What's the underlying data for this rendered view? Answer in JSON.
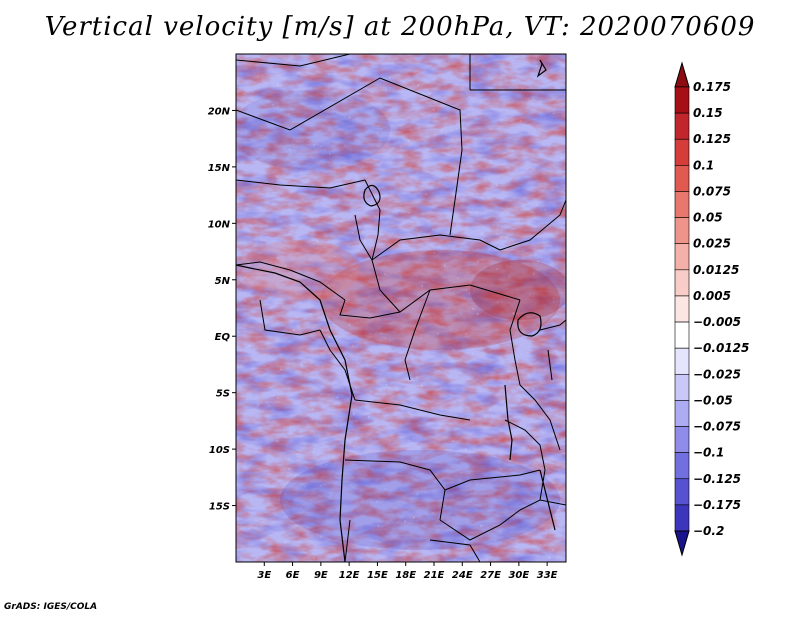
{
  "title": "Vertical velocity [m/s] at 200hPa, VT: 2020070609",
  "credit": "GrADS: IGES/COLA",
  "map": {
    "lon_range": [
      0,
      35
    ],
    "lat_range": [
      -20,
      25
    ],
    "lat_labels": [
      {
        "lat": 20,
        "text": "20N"
      },
      {
        "lat": 15,
        "text": "15N"
      },
      {
        "lat": 10,
        "text": "10N"
      },
      {
        "lat": 5,
        "text": "5N"
      },
      {
        "lat": 0,
        "text": "EQ"
      },
      {
        "lat": -5,
        "text": "5S"
      },
      {
        "lat": -10,
        "text": "10S"
      },
      {
        "lat": -15,
        "text": "15S"
      }
    ],
    "lon_labels": [
      {
        "lon": 3,
        "text": "3E"
      },
      {
        "lon": 6,
        "text": "6E"
      },
      {
        "lon": 9,
        "text": "9E"
      },
      {
        "lon": 12,
        "text": "12E"
      },
      {
        "lon": 15,
        "text": "15E"
      },
      {
        "lon": 18,
        "text": "18E"
      },
      {
        "lon": 21,
        "text": "21E"
      },
      {
        "lon": 24,
        "text": "24E"
      },
      {
        "lon": 27,
        "text": "27E"
      },
      {
        "lon": 30,
        "text": "30E"
      },
      {
        "lon": 33,
        "text": "33E"
      }
    ]
  },
  "colorbar": {
    "levels": [
      {
        "label": "0.175",
        "color": "#a50f15"
      },
      {
        "label": "0.15",
        "color": "#c0262b"
      },
      {
        "label": "0.125",
        "color": "#d43d3a"
      },
      {
        "label": "0.1",
        "color": "#e05a52"
      },
      {
        "label": "0.075",
        "color": "#e8776e"
      },
      {
        "label": "0.05",
        "color": "#ef948b"
      },
      {
        "label": "0.025",
        "color": "#f4b1aa"
      },
      {
        "label": "0.0125",
        "color": "#f8cdc8"
      },
      {
        "label": "0.005",
        "color": "#fce6e3"
      },
      {
        "label": "−0.005",
        "color": "#ffffff"
      },
      {
        "label": "−0.0125",
        "color": "#e4e4fc"
      },
      {
        "label": "−0.025",
        "color": "#c9c8f8"
      },
      {
        "label": "−0.05",
        "color": "#adabf2"
      },
      {
        "label": "−0.075",
        "color": "#908dea"
      },
      {
        "label": "−0.1",
        "color": "#726fdf"
      },
      {
        "label": "−0.125",
        "color": "#5652d0"
      },
      {
        "label": "−0.175",
        "color": "#3b36bc"
      },
      {
        "label": "−0.2",
        "color": "#241fa3"
      }
    ],
    "top_color": "#8b0d12",
    "bottom_color": "#1a148c"
  }
}
